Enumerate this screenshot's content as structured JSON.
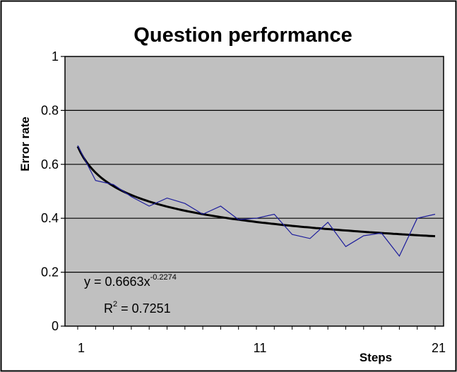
{
  "chart_data": {
    "type": "line",
    "title": "Question performance",
    "xlabel": "Steps",
    "ylabel": "Error rate",
    "xlim": [
      1,
      21
    ],
    "ylim": [
      0,
      1
    ],
    "x_ticks": [
      "1",
      "11",
      "21"
    ],
    "y_ticks": [
      "0",
      "0.2",
      "0.4",
      "0.6",
      "0.8",
      "1"
    ],
    "grid": "horizontal",
    "legend": "none",
    "series": [
      {
        "x": [
          1,
          2,
          3,
          4,
          5,
          6,
          7,
          8,
          9,
          10,
          11,
          12,
          13,
          14,
          15,
          16,
          17,
          18,
          19,
          20,
          21
        ],
        "values": [
          0.67,
          0.54,
          0.525,
          0.48,
          0.445,
          0.475,
          0.455,
          0.415,
          0.445,
          0.395,
          0.4,
          0.415,
          0.34,
          0.325,
          0.385,
          0.295,
          0.335,
          0.345,
          0.26,
          0.4,
          0.415
        ],
        "color": "#1c1c9c"
      }
    ],
    "trendline": {
      "type": "power",
      "coefficient": 0.6663,
      "exponent": -0.2274,
      "color": "#000000"
    },
    "annotations": {
      "equation_main": "y = 0.6663x",
      "equation_exp": "-0.2274",
      "r2_label": "R",
      "r2_exp": "2",
      "r2_value": " = 0.7251"
    },
    "colors": {
      "plot_bg": "#c0c0c0",
      "frame": "#000000",
      "page_bg": "#ffffff"
    }
  }
}
